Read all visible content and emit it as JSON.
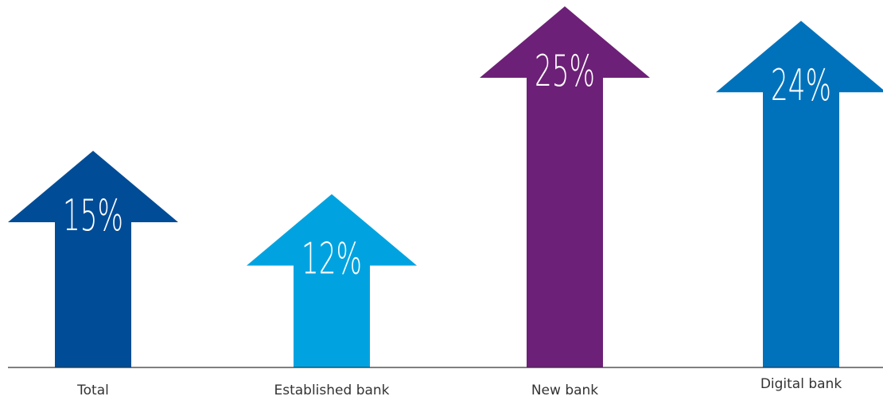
{
  "chart_data": {
    "type": "bar",
    "categories": [
      "Total",
      "Established bank",
      "New bank",
      "Digital bank"
    ],
    "values": [
      15,
      12,
      25,
      24
    ],
    "value_labels": [
      "15%",
      "12%",
      "25%",
      "24%"
    ],
    "colors": [
      "#004c97",
      "#00a3e0",
      "#6d2077",
      "#0072bc"
    ],
    "style": "arrows",
    "title": "",
    "xlabel": "",
    "ylabel": "",
    "ylim": [
      0,
      27
    ]
  }
}
